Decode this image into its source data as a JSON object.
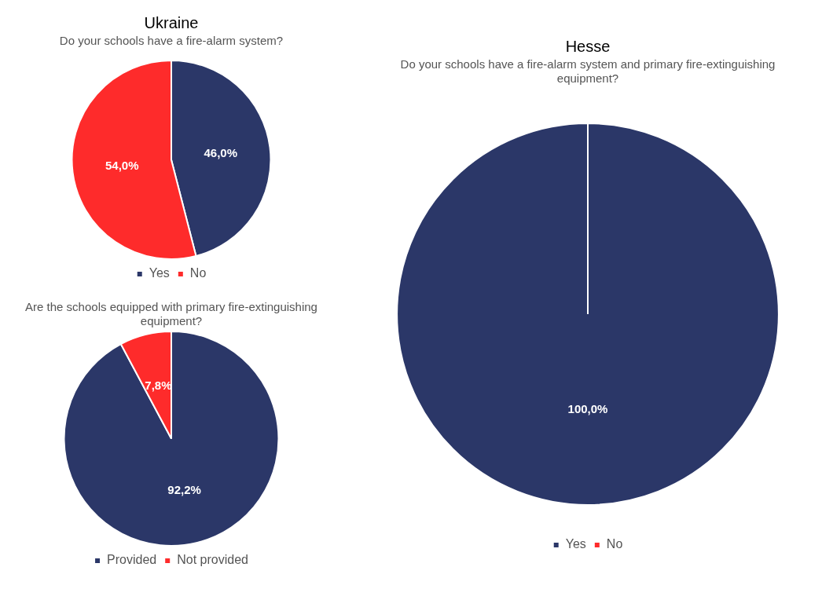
{
  "chart_data": [
    {
      "type": "pie",
      "title": "Ukraine",
      "subtitle": "Do your schools have a fire-alarm system?",
      "categories": [
        "Yes",
        "No"
      ],
      "values": [
        46.0,
        54.0
      ],
      "colors": [
        "#2b3768",
        "#fe2b2b"
      ],
      "value_labels": [
        "46,0%",
        "54,0%"
      ],
      "legend": "bottom"
    },
    {
      "type": "pie",
      "title": "Are the schools equipped with primary fire-extinguishing equipment?",
      "categories": [
        "Provided",
        "Not provided"
      ],
      "values": [
        92.2,
        7.8
      ],
      "colors": [
        "#2b3768",
        "#fe2b2b"
      ],
      "value_labels": [
        "92,2%",
        "7,8%"
      ],
      "legend": "bottom"
    },
    {
      "type": "pie",
      "title": "Hesse",
      "subtitle": "Do your schools have a fire-alarm system and primary fire-extinguishing equipment?",
      "categories": [
        "Yes",
        "No"
      ],
      "values": [
        100.0,
        0
      ],
      "colors": [
        "#2b3768",
        "#fe2b2b"
      ],
      "value_labels": [
        "100,0%",
        null
      ],
      "legend": "bottom"
    }
  ]
}
